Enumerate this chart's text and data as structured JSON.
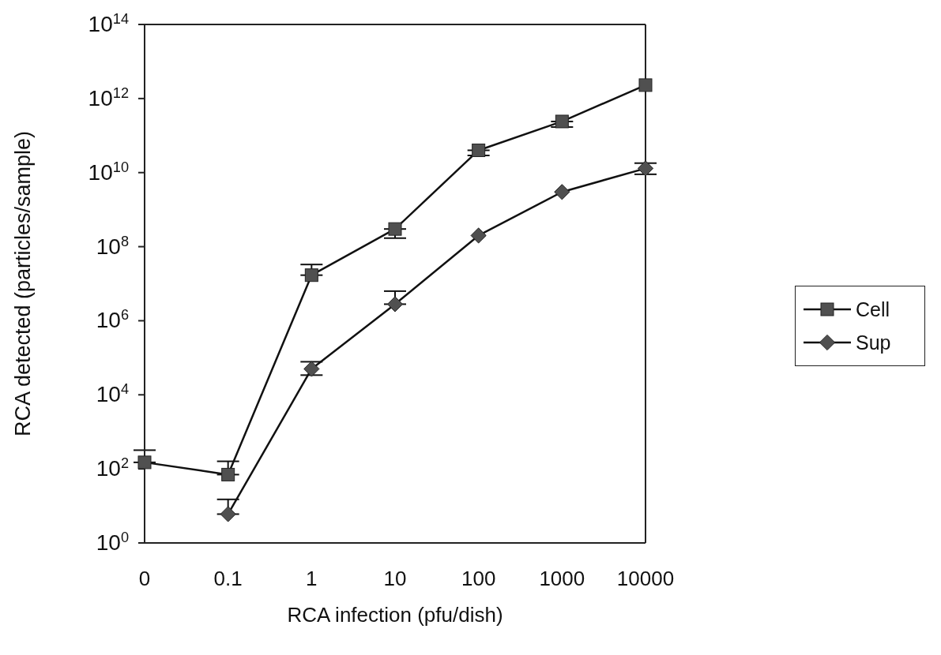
{
  "chart_data": {
    "type": "line",
    "xlabel": "RCA infection (pfu/dish)",
    "ylabel": "RCA detected (particles/sample)",
    "categories": [
      "0",
      "0.1",
      "1",
      "10",
      "100",
      "1000",
      "10000"
    ],
    "series": [
      {
        "name": "Cell",
        "color": "#505050",
        "marker": "square",
        "values": [
          150,
          70,
          17000000.0,
          300000000.0,
          40000000000.0,
          240000000000.0,
          2300000000000.0
        ],
        "errors": [
          [
            150,
            320
          ],
          [
            70,
            160
          ],
          [
            17000000.0,
            33000000.0
          ],
          [
            170000000.0,
            300000000.0
          ],
          [
            29000000000.0,
            40000000000.0
          ],
          [
            170000000000.0,
            240000000000.0
          ],
          null
        ]
      },
      {
        "name": "Sup",
        "color": "#505050",
        "marker": "diamond",
        "values": [
          null,
          6,
          50000.0,
          2800000.0,
          200000000.0,
          3000000000.0,
          13000000000.0
        ],
        "errors": [
          null,
          [
            6,
            15
          ],
          [
            34000.0,
            78000.0
          ],
          [
            2800000.0,
            6300000.0
          ],
          null,
          null,
          [
            9000000000.0,
            18000000000.0
          ]
        ]
      }
    ],
    "log": "y",
    "ylim": [
      1,
      100000000000000.0
    ],
    "yticks": [
      {
        "value": 1,
        "label": "10$^{0}$"
      },
      {
        "value": 100,
        "label": "10$^{2}$"
      },
      {
        "value": 10000,
        "label": "10$^{4}$"
      },
      {
        "value": 1000000,
        "label": "10$^{6}$"
      },
      {
        "value": 100000000,
        "label": "10$^{8}$"
      },
      {
        "value": 10000000000,
        "label": "10$^{10}$"
      },
      {
        "value": 1000000000000,
        "label": "10$^{12}$"
      },
      {
        "value": 100000000000000,
        "label": "10$^{14}$"
      }
    ],
    "grid": false,
    "legend": "right",
    "line_style": "solid"
  }
}
